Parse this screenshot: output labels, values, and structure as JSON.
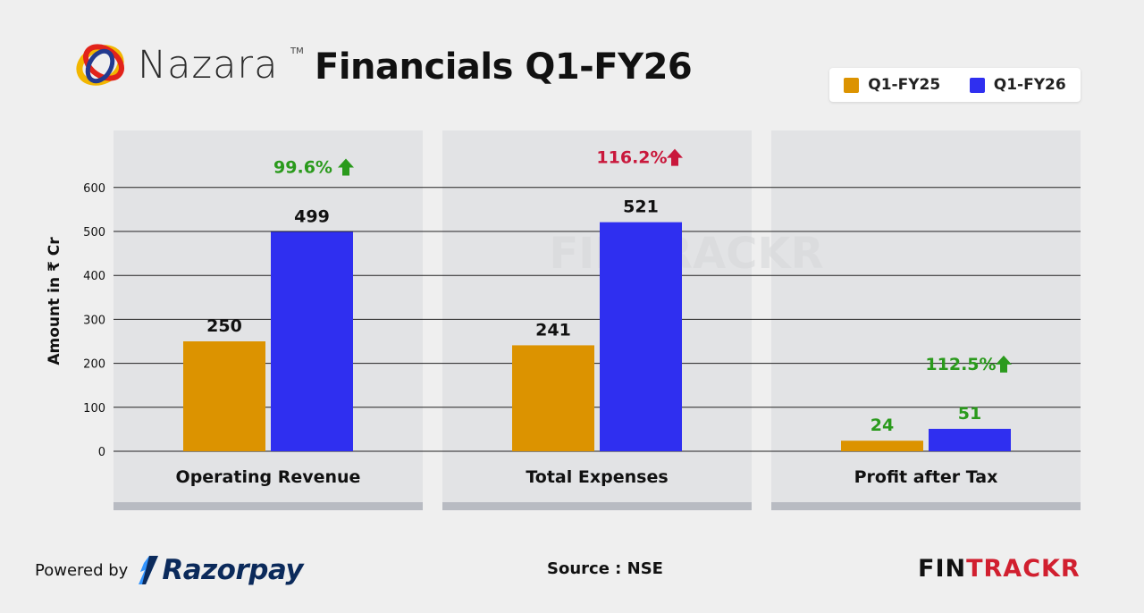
{
  "header": {
    "brand": "Nazara",
    "brand_tm": "TM",
    "title": "Financials Q1-FY26"
  },
  "colors": {
    "q1_fy25": "#dc9300",
    "q1_fy26": "#2f2ff0",
    "growth_up": "#2a9a1c",
    "growth_expense": "#c9183c",
    "panel": "#e2e3e5",
    "panel_bottom": "#b8bbc2"
  },
  "watermark": "FINTRACKR",
  "chart_data": {
    "type": "bar",
    "ylabel": "Amount in ₹ Cr",
    "ylim": [
      0,
      600
    ],
    "yticks": [
      0,
      100,
      200,
      300,
      400,
      500,
      600
    ],
    "grid": true,
    "legend_position": "top-right",
    "categories": [
      "Operating Revenue",
      "Total Expenses",
      "Profit after Tax"
    ],
    "series": [
      {
        "name": "Q1-FY25",
        "values": [
          250,
          241,
          24
        ]
      },
      {
        "name": "Q1-FY26",
        "values": [
          499,
          521,
          51
        ]
      }
    ],
    "value_labels": [
      [
        "250",
        "241",
        "24"
      ],
      [
        "499",
        "521",
        "51"
      ]
    ],
    "growth_labels": [
      "99.6%",
      "116.2%",
      "112.5%"
    ]
  },
  "footer": {
    "powered_by": "Powered by",
    "razorpay": "Razorpay",
    "source": "Source : NSE",
    "fintrackr_part1": "FIN",
    "fintrackr_part2": "TRACKR"
  }
}
